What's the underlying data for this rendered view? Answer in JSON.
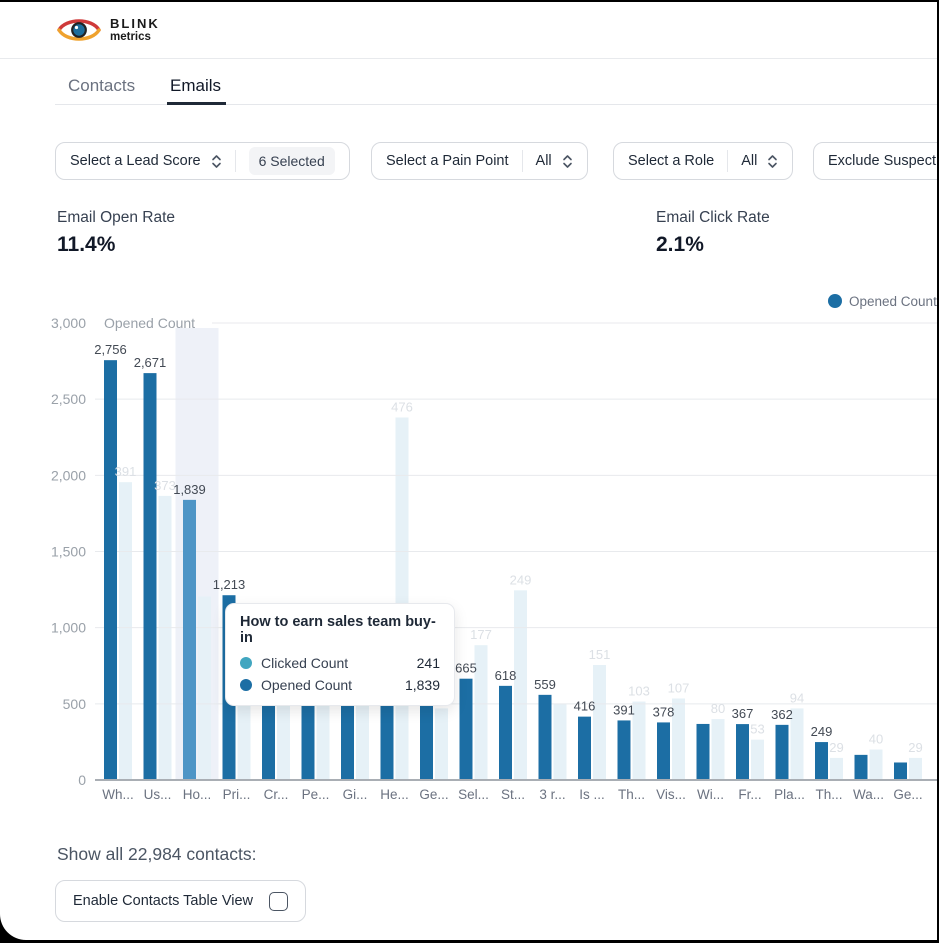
{
  "brand": {
    "line1": "BLINK",
    "line2": "metrics"
  },
  "tabs": {
    "contacts": "Contacts",
    "emails": "Emails"
  },
  "filters": {
    "lead_score_label": "Select a Lead Score",
    "lead_score_badge": "6 Selected",
    "pain_point_label": "Select a Pain Point",
    "pain_point_value": "All",
    "role_label": "Select a Role",
    "role_value": "All",
    "exclude_label": "Exclude Suspect"
  },
  "metrics": {
    "open_rate_label": "Email Open Rate",
    "open_rate_value": "11.4%",
    "click_rate_label": "Email Click Rate",
    "click_rate_value": "2.1%"
  },
  "legend": {
    "opened_label": "Opened Count"
  },
  "tooltip": {
    "title": "How to earn sales team buy-in",
    "clicked_label": "Clicked Count",
    "clicked_value": "241",
    "opened_label": "Opened Count",
    "opened_value": "1,839"
  },
  "footer": {
    "show_all": "Show all 22,984 contacts:",
    "enable_button": "Enable Contacts Table View"
  },
  "colors": {
    "opened_bar": "#1c6ea4",
    "opened_bar_hover": "#4e95c6",
    "clicked_bar": "#e6f1f7",
    "clicked_dot": "#41a6c0",
    "highlight_band": "#eef1f8",
    "grid_line": "#e8eaed",
    "axis_text": "#9aa1a9",
    "bar_label": "#434a54",
    "faint_label": "#dce0e5",
    "logo_red": "#cf3a3a",
    "logo_yellow": "#efa22e",
    "logo_pupil": "#1d6d9c"
  },
  "chart_data": {
    "type": "bar",
    "title": "",
    "xlabel": "",
    "ylabel": "Opened Count",
    "ylim": [
      0,
      3000
    ],
    "ytick_labels": [
      "0",
      "500",
      "1,000",
      "1,500",
      "2,000",
      "2,500",
      "3,000"
    ],
    "secondary_ylim": [
      0,
      600
    ],
    "grid": true,
    "legend_position": "top-right",
    "hovered_index": 2,
    "hovered_category_full": "How to earn sales team buy-in",
    "categories": [
      "Wh...",
      "Us...",
      "Ho...",
      "Pri...",
      "Cr...",
      "Pe...",
      "Gi...",
      "He...",
      "Ge...",
      "Sel...",
      "St...",
      "3 r...",
      "Is ...",
      "Th...",
      "Vis...",
      "Wi...",
      "Fr...",
      "Pla...",
      "Th...",
      "Wa...",
      "Ge..."
    ],
    "series": [
      {
        "name": "Opened Count",
        "axis": "left",
        "values": [
          2756,
          2671,
          1839,
          1213,
          1059,
          1000,
          920,
          850,
          760,
          665,
          618,
          559,
          416,
          391,
          378,
          368,
          367,
          362,
          249,
          165,
          115
        ],
        "labels": [
          "2,756",
          "2,671",
          "1,839",
          "1,213",
          "1,059",
          "",
          "",
          "",
          "",
          "665",
          "618",
          "559",
          "416",
          "391",
          "378",
          "",
          "367",
          "362",
          "249",
          "",
          ""
        ]
      },
      {
        "name": "Clicked Count",
        "axis": "right",
        "values": [
          391,
          373,
          241,
          190,
          115,
          120,
          110,
          476,
          94,
          177,
          249,
          100,
          151,
          103,
          107,
          80,
          53,
          94,
          29,
          40,
          29
        ],
        "labels": [
          "391",
          "373",
          "",
          "",
          "",
          "",
          "",
          "476",
          "94",
          "177",
          "249",
          "",
          "151",
          "103",
          "107",
          "80",
          "53",
          "94",
          "29",
          "40",
          "29"
        ]
      }
    ]
  }
}
